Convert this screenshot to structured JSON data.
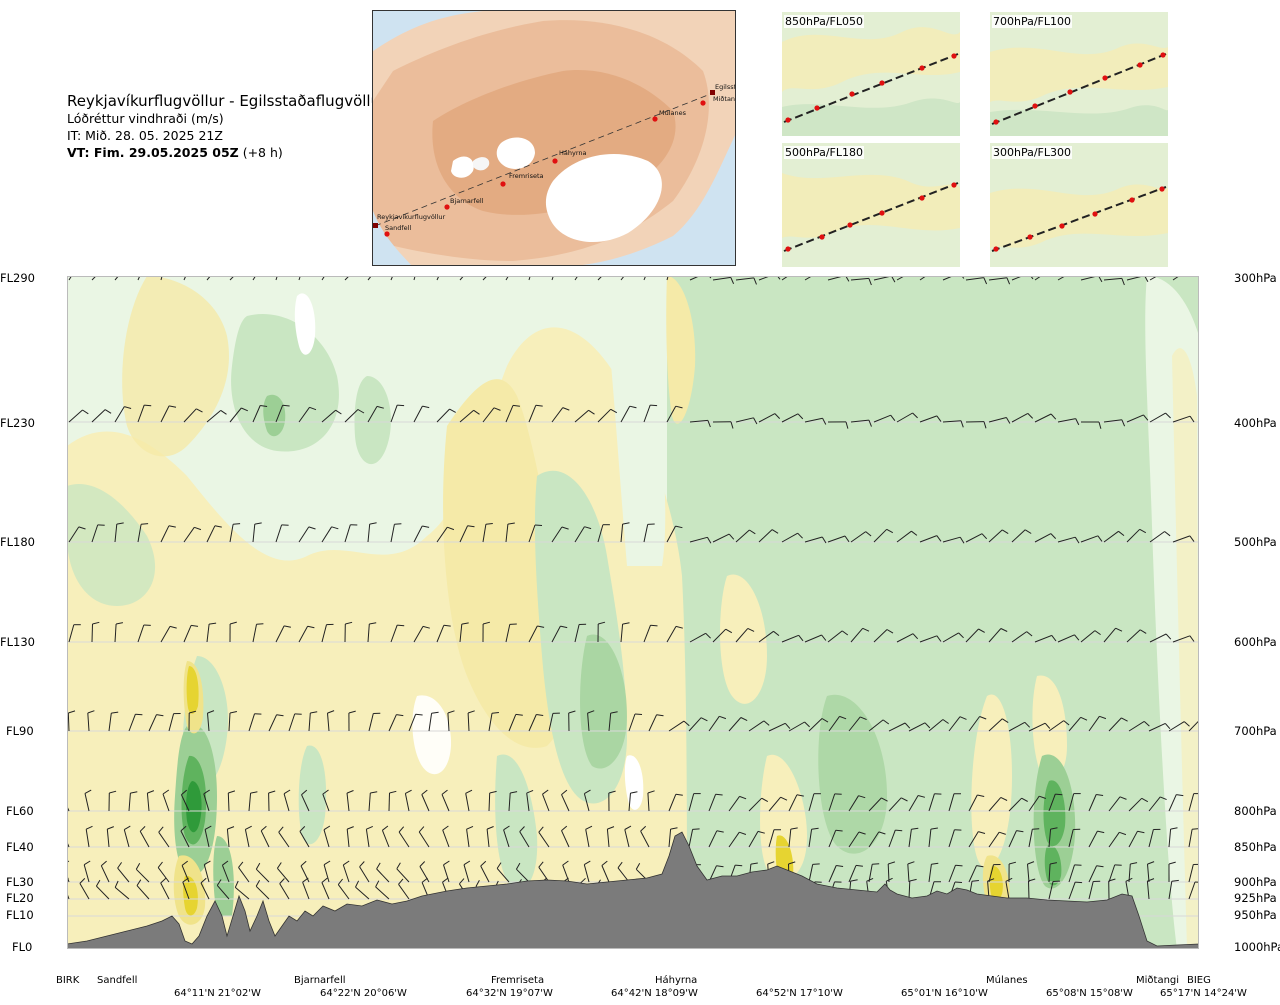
{
  "header": {
    "route": "Reykjavíkurflugvöllur - Egilsstaðaflugvöllur",
    "variable": "Lóðréttur vindhraði (m/s)",
    "issue_time": "IT: Mið. 28. 05. 2025 21Z",
    "valid_time_label": "VT: Fim. 29.05.2025 05Z",
    "valid_time_offset": "(+8 h)"
  },
  "map": {
    "places": [
      {
        "name": "Reykjavíkurflugvöllur"
      },
      {
        "name": "Sandfell"
      },
      {
        "name": "Bjarnarfell"
      },
      {
        "name": "Fremriseta"
      },
      {
        "name": "Háhyrna"
      },
      {
        "name": "Múlanes"
      },
      {
        "name": "Miðtangi"
      },
      {
        "name": "Egilsstaðaflugvöllur"
      }
    ]
  },
  "thumbnails": [
    {
      "label": "850hPa/FL050"
    },
    {
      "label": "700hPa/FL100"
    },
    {
      "label": "500hPa/FL180"
    },
    {
      "label": "300hPa/FL300"
    }
  ],
  "left_axis": [
    "FL290",
    "FL230",
    "FL180",
    "FL130",
    "FL90",
    "FL60",
    "FL40",
    "FL30",
    "FL20",
    "FL10",
    "FL0"
  ],
  "right_axis": [
    "300hPa",
    "400hPa",
    "500hPa",
    "600hPa",
    "700hPa",
    "800hPa",
    "850hPa",
    "900hPa",
    "925hPa",
    "950hPa",
    "1000hPa"
  ],
  "x_labels": {
    "waypoints": [
      "BIRK",
      "Sandfell",
      "Bjarnarfell",
      "Fremriseta",
      "Háhyrna",
      "Múlanes",
      "Miðtangi",
      "BIEG"
    ],
    "coords": [
      "64°11'N 21°02'W",
      "64°22'N 20°06'W",
      "64°32'N 19°07'W",
      "64°42'N 18°09'W",
      "64°52'N 17°10'W",
      "65°01'N 16°10'W",
      "65°08'N 15°08'W",
      "65°17'N 14°24'W"
    ]
  },
  "colors": {
    "light_green": "#c9e6c2",
    "mid_green": "#9ccf95",
    "dark_green": "#2f9a3a",
    "pale_yellow": "#f7efbb",
    "yellow": "#f0e38a",
    "strong_yellow": "#e6d431",
    "terrain": "#7b7b7b",
    "white": "#ffffff"
  }
}
